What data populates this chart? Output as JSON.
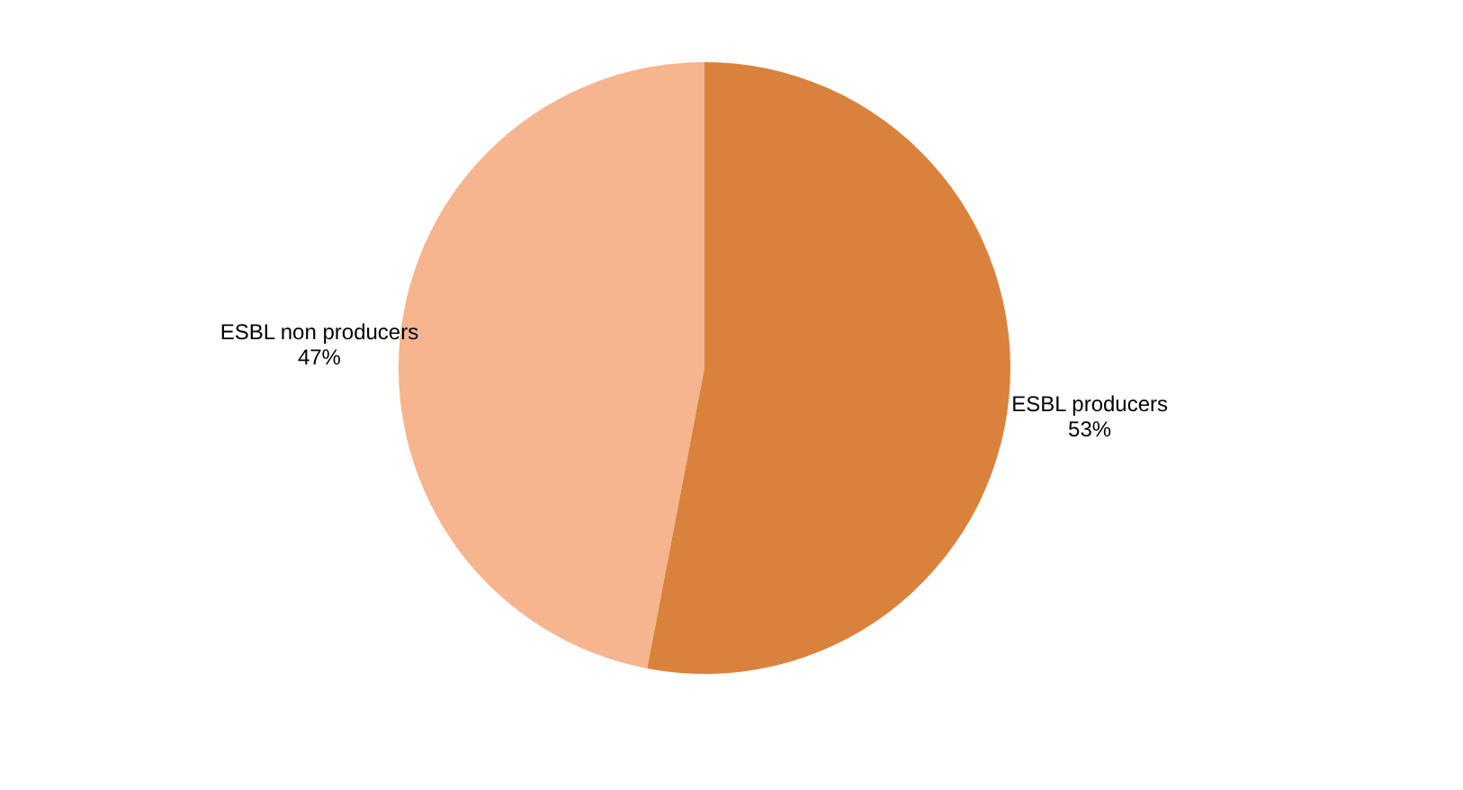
{
  "chart_data": {
    "type": "pie",
    "categories": [
      "ESBL non producers",
      "ESBL producers"
    ],
    "values": [
      47,
      53
    ],
    "colors": [
      "#f6b48f",
      "#d9823c"
    ],
    "value_labels": [
      "47%",
      "53%"
    ]
  }
}
